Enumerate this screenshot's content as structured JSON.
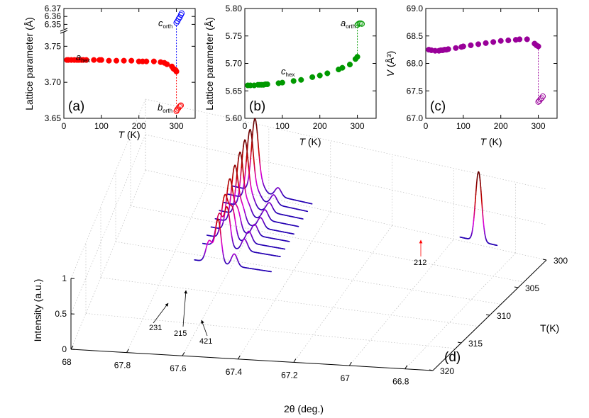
{
  "chart_data": [
    {
      "id": "a",
      "type": "scatter",
      "panel_label": "(a)",
      "ylabel": "Lattice parameter (Å)",
      "xlabel_var": "T",
      "xlabel_unit": " (K)",
      "xlim": [
        0,
        350
      ],
      "xticks": [
        0,
        100,
        200,
        300
      ],
      "ylim_lower": [
        3.65,
        3.77
      ],
      "yticks_lower": [
        "3.65",
        "3.70",
        "3.75"
      ],
      "ylim_upper": [
        6.345,
        6.37
      ],
      "yticks_upper": [
        "6.35",
        "6.36",
        "6.37"
      ],
      "series": [
        {
          "name": "a_hex",
          "label_main": "a",
          "label_sub": "hex",
          "color": "#ff0000",
          "filled": true,
          "axis": "lower",
          "x": [
            8,
            12,
            20,
            28,
            35,
            40,
            47,
            52,
            60,
            80,
            95,
            100,
            120,
            140,
            160,
            180,
            200,
            210,
            220,
            240,
            258,
            268,
            275,
            288,
            292,
            295,
            298,
            300
          ],
          "y": [
            3.731,
            3.731,
            3.731,
            3.731,
            3.731,
            3.731,
            3.731,
            3.731,
            3.731,
            3.731,
            3.731,
            3.731,
            3.73,
            3.73,
            3.73,
            3.73,
            3.729,
            3.729,
            3.729,
            3.729,
            3.728,
            3.727,
            3.725,
            3.722,
            3.719,
            3.718,
            3.717,
            3.715
          ]
        },
        {
          "name": "b_orth",
          "label_main": "b",
          "label_sub": "orth",
          "color": "#ff0000",
          "filled": false,
          "axis": "lower",
          "x": [
            300,
            302,
            305,
            308,
            310,
            312
          ],
          "y": [
            3.66,
            3.662,
            3.664,
            3.666,
            3.667,
            3.668
          ]
        },
        {
          "name": "c_orth",
          "label_main": "c",
          "label_sub": "orth",
          "color": "#0000ff",
          "filled": false,
          "axis": "upper",
          "x": [
            300,
            303,
            306,
            309,
            312,
            314
          ],
          "y": [
            6.352,
            6.354,
            6.357,
            6.359,
            6.362,
            6.364
          ]
        }
      ]
    },
    {
      "id": "b",
      "type": "scatter",
      "panel_label": "(b)",
      "ylabel": "Lattice parameter (Å)",
      "xlabel_var": "T",
      "xlabel_unit": " (K)",
      "xlim": [
        0,
        350
      ],
      "xticks": [
        0,
        100,
        200,
        300
      ],
      "ylim": [
        5.6,
        5.8
      ],
      "yticks": [
        "5.60",
        "5.65",
        "5.70",
        "5.75",
        "5.80"
      ],
      "series": [
        {
          "name": "c_hex",
          "label_main": "c",
          "label_sub": "hex",
          "color": "#009900",
          "filled": true,
          "x": [
            8,
            15,
            25,
            35,
            40,
            45,
            50,
            55,
            60,
            90,
            100,
            130,
            150,
            180,
            200,
            220,
            250,
            260,
            280,
            295,
            300
          ],
          "y": [
            5.66,
            5.66,
            5.66,
            5.661,
            5.661,
            5.661,
            5.661,
            5.662,
            5.662,
            5.664,
            5.665,
            5.668,
            5.67,
            5.675,
            5.678,
            5.682,
            5.689,
            5.692,
            5.698,
            5.708,
            5.712
          ]
        },
        {
          "name": "a_orth",
          "label_main": "a",
          "label_sub": "orth",
          "color": "#009900",
          "filled": false,
          "x": [
            300,
            303,
            306,
            309,
            312
          ],
          "y": [
            5.77,
            5.772,
            5.773,
            5.773,
            5.772
          ]
        }
      ]
    },
    {
      "id": "c",
      "type": "scatter",
      "panel_label": "(c)",
      "ylabel_var": "V",
      "ylabel_unit": " (Å³)",
      "xlabel_var": "T",
      "xlabel_unit": " (K)",
      "xlim": [
        0,
        350
      ],
      "xticks": [
        0,
        100,
        200,
        300
      ],
      "ylim": [
        67.0,
        69.0
      ],
      "yticks": [
        "67.0",
        "67.5",
        "68.0",
        "68.5",
        "69.0"
      ],
      "series": [
        {
          "name": "V_hex",
          "color": "#990099",
          "filled": true,
          "x": [
            8,
            15,
            25,
            35,
            40,
            45,
            50,
            55,
            60,
            80,
            95,
            100,
            120,
            140,
            160,
            180,
            200,
            220,
            240,
            250,
            270,
            290,
            295,
            300
          ],
          "y": [
            68.25,
            68.24,
            68.23,
            68.23,
            68.24,
            68.24,
            68.25,
            68.25,
            68.26,
            68.28,
            68.3,
            68.31,
            68.33,
            68.35,
            68.37,
            68.39,
            68.41,
            68.42,
            68.43,
            68.44,
            68.44,
            68.36,
            68.33,
            68.31
          ]
        },
        {
          "name": "V_orth",
          "color": "#990099",
          "filled": false,
          "x": [
            300,
            303,
            306,
            309,
            312
          ],
          "y": [
            67.3,
            67.32,
            67.35,
            67.37,
            67.4
          ]
        }
      ]
    },
    {
      "id": "d",
      "type": "line",
      "panel_label": "(d)",
      "xlabel": "2θ (deg.)",
      "ylabel": "Intensity (a.u.)",
      "zlabel": "T(K)",
      "xlim": [
        68,
        66.7
      ],
      "xticks": [
        "68",
        "67.8",
        "67.6",
        "67.4",
        "67.2",
        "67",
        "66.8"
      ],
      "yticks": [
        "0",
        "0.5",
        "1"
      ],
      "zticks": [
        "300",
        "305",
        "310",
        "315",
        "320"
      ],
      "peak_labels": [
        "231",
        "215",
        "421",
        "212"
      ],
      "colors": {
        "low": "#0000aa",
        "mid": "#dd00dd",
        "high": "#cc0000",
        "top": "#660000",
        "arrow_red": "#ff0000"
      },
      "series": [
        {
          "name": "T=300 K",
          "x_start": 67.72,
          "x_end": 67.46,
          "peaks": [
            {
              "x": 67.645,
              "h": 1.02,
              "w": 0.011
            },
            {
              "x": 67.62,
              "h": 0.08,
              "w": 0.01
            },
            {
              "x": 67.57,
              "h": 0.12,
              "w": 0.01
            }
          ]
        },
        {
          "name": "T=301 K",
          "x_start": 67.72,
          "x_end": 67.46,
          "peaks": [
            {
              "x": 67.647,
              "h": 0.98,
              "w": 0.011
            },
            {
              "x": 67.62,
              "h": 0.1,
              "w": 0.01
            },
            {
              "x": 67.57,
              "h": 0.13,
              "w": 0.01
            }
          ]
        },
        {
          "name": "T=302 K",
          "x_start": 67.72,
          "x_end": 67.46,
          "peaks": [
            {
              "x": 67.65,
              "h": 0.94,
              "w": 0.011
            },
            {
              "x": 67.625,
              "h": 0.13,
              "w": 0.01
            },
            {
              "x": 67.57,
              "h": 0.13,
              "w": 0.01
            }
          ]
        },
        {
          "name": "T=303 K",
          "x_start": 67.72,
          "x_end": 67.46,
          "peaks": [
            {
              "x": 67.652,
              "h": 0.88,
              "w": 0.011
            },
            {
              "x": 67.625,
              "h": 0.16,
              "w": 0.01
            },
            {
              "x": 67.57,
              "h": 0.14,
              "w": 0.01
            }
          ]
        },
        {
          "name": "T=304 K",
          "x_start": 67.72,
          "x_end": 67.46,
          "peaks": [
            {
              "x": 67.655,
              "h": 0.8,
              "w": 0.011
            },
            {
              "x": 67.63,
              "h": 0.22,
              "w": 0.01
            },
            {
              "x": 67.57,
              "h": 0.14,
              "w": 0.01
            }
          ]
        },
        {
          "name": "T=305 K",
          "x_start": 67.72,
          "x_end": 67.46,
          "peaks": [
            {
              "x": 67.658,
              "h": 0.72,
              "w": 0.011
            },
            {
              "x": 67.632,
              "h": 0.3,
              "w": 0.01
            },
            {
              "x": 67.575,
              "h": 0.15,
              "w": 0.01
            }
          ]
        },
        {
          "name": "T=306 K",
          "x_start": 67.72,
          "x_end": 67.46,
          "peaks": [
            {
              "x": 67.66,
              "h": 0.6,
              "w": 0.011
            },
            {
              "x": 67.635,
              "h": 0.42,
              "w": 0.01
            },
            {
              "x": 67.58,
              "h": 0.16,
              "w": 0.01
            }
          ]
        },
        {
          "name": "T=307 K",
          "x_start": 67.72,
          "x_end": 67.46,
          "peaks": [
            {
              "x": 67.665,
              "h": 0.45,
              "w": 0.011
            },
            {
              "x": 67.638,
              "h": 0.55,
              "w": 0.01
            },
            {
              "x": 67.58,
              "h": 0.16,
              "w": 0.01
            }
          ]
        },
        {
          "name": "T=310 K",
          "x_start": 67.72,
          "x_end": 67.46,
          "peaks": [
            {
              "x": 67.67,
              "h": 0.3,
              "w": 0.011
            },
            {
              "x": 67.64,
              "h": 0.62,
              "w": 0.01
            },
            {
              "x": 67.585,
              "h": 0.17,
              "w": 0.01
            }
          ]
        },
        {
          "name": "T=300 K (212)",
          "x_start": 66.98,
          "x_end": 66.86,
          "peaks": [
            {
              "x": 66.92,
              "h": 0.98,
              "w": 0.01
            }
          ]
        }
      ]
    }
  ]
}
